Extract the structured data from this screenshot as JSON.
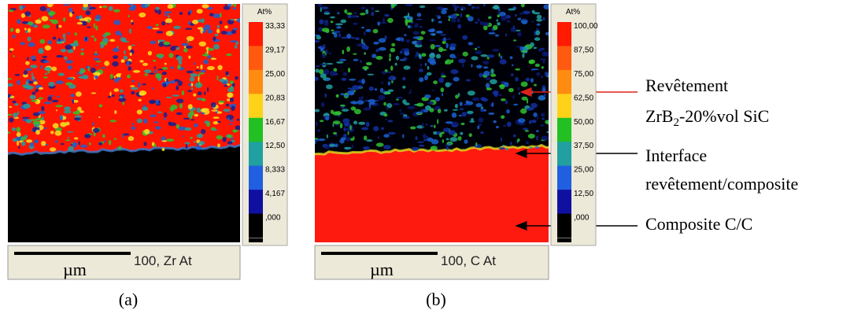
{
  "panels": [
    {
      "legend_title": "At%",
      "scale_labels": [
        "33,33",
        "29,17",
        "25,00",
        "20,83",
        "16,67",
        "12,50",
        "8,333",
        "4,167",
        ",000"
      ],
      "scale_unit": "µm",
      "scale_text": "100,  Zr At",
      "caption": "(a)"
    },
    {
      "legend_title": "At%",
      "scale_labels": [
        "100,00",
        "87,50",
        "75,00",
        "62,50",
        "50,00",
        "37,50",
        "25,00",
        "12,50",
        ",000"
      ],
      "scale_unit": "µm",
      "scale_text": "100,  C At",
      "caption": "(b)"
    }
  ],
  "annotations": [
    {
      "line1": "Revêtement",
      "line2": {
        "before": "ZrB",
        "sub": "2",
        "after": "-20%vol SiC"
      }
    },
    {
      "line1": "Interface",
      "line2": "revêtement/composite"
    },
    {
      "line1": "Composite C/C"
    }
  ]
}
